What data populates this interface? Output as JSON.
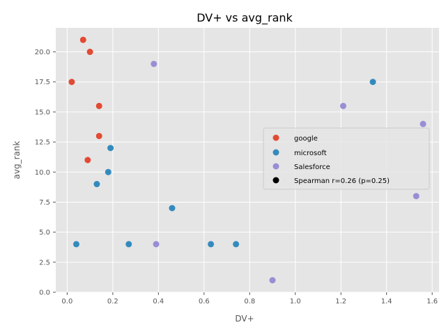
{
  "chart_data": {
    "type": "scatter",
    "title": "DV+ vs avg_rank",
    "xlabel": "DV+",
    "ylabel": "avg_rank",
    "xlim": [
      -0.05,
      1.63
    ],
    "ylim": [
      0,
      22
    ],
    "x_ticks": [
      "0.0",
      "0.2",
      "0.4",
      "0.6",
      "0.8",
      "1.0",
      "1.2",
      "1.4",
      "1.6"
    ],
    "y_ticks": [
      "0.0",
      "2.5",
      "5.0",
      "7.5",
      "10.0",
      "12.5",
      "15.0",
      "17.5",
      "20.0"
    ],
    "grid": true,
    "legend_position": "center-right",
    "series": [
      {
        "name": "google",
        "color": "#E24A33",
        "points": [
          {
            "x": 0.07,
            "y": 21.0
          },
          {
            "x": 0.1,
            "y": 20.0
          },
          {
            "x": 0.02,
            "y": 17.5
          },
          {
            "x": 0.14,
            "y": 15.5
          },
          {
            "x": 0.14,
            "y": 13.0
          },
          {
            "x": 0.09,
            "y": 11.0
          }
        ]
      },
      {
        "name": "microsoft",
        "color": "#348ABD",
        "points": [
          {
            "x": 1.34,
            "y": 17.5
          },
          {
            "x": 0.19,
            "y": 12.0
          },
          {
            "x": 0.18,
            "y": 10.0
          },
          {
            "x": 0.13,
            "y": 9.0
          },
          {
            "x": 0.46,
            "y": 7.0
          },
          {
            "x": 0.04,
            "y": 4.0
          },
          {
            "x": 0.27,
            "y": 4.0
          },
          {
            "x": 0.63,
            "y": 4.0
          },
          {
            "x": 0.74,
            "y": 4.0
          }
        ]
      },
      {
        "name": "Salesforce",
        "color": "#988ED5",
        "points": [
          {
            "x": 0.38,
            "y": 19.0
          },
          {
            "x": 1.21,
            "y": 15.5
          },
          {
            "x": 1.56,
            "y": 14.0
          },
          {
            "x": 1.53,
            "y": 8.0
          },
          {
            "x": 0.39,
            "y": 4.0
          },
          {
            "x": 0.9,
            "y": 1.0
          }
        ]
      }
    ],
    "annotation": {
      "label": "Spearman r=0.26 (p=0.25)",
      "color": "#000000"
    }
  }
}
